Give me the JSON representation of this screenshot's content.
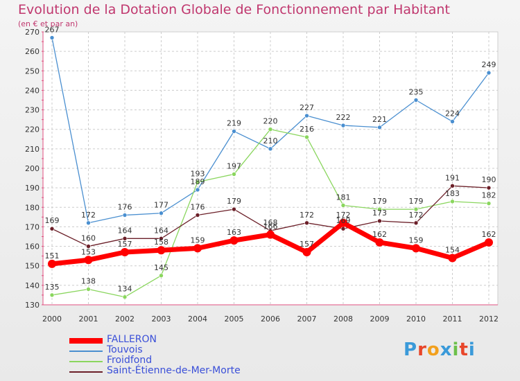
{
  "title": "Evolution de la Dotation Globale de Fonctionnement par Habitant",
  "subtitle": "(en € et par an)",
  "logo": {
    "text": "Proxiti",
    "letter_colors": [
      "#3a9ad9",
      "#e8462a",
      "#f2a01d",
      "#3a9ad9",
      "#6cc04a",
      "#e8462a",
      "#3a9ad9"
    ]
  },
  "chart_data": {
    "type": "line",
    "title": "Evolution de la Dotation Globale de Fonctionnement par Habitant",
    "subtitle": "(en € et par an)",
    "x": [
      "2000",
      "2001",
      "2002",
      "2003",
      "2004",
      "2005",
      "2006",
      "2007",
      "2008",
      "2009",
      "2010",
      "2011",
      "2012"
    ],
    "ylim": [
      130,
      270
    ],
    "yticks": [
      130,
      140,
      150,
      160,
      170,
      180,
      190,
      200,
      210,
      220,
      230,
      240,
      250,
      260,
      270
    ],
    "grid": true,
    "legend_position": "bottom-left",
    "series": [
      {
        "name": "FALLERON",
        "color": "#ff0000",
        "values": [
          151,
          153,
          157,
          158,
          159,
          163,
          166,
          157,
          172,
          162,
          159,
          154,
          162
        ]
      },
      {
        "name": "Touvois",
        "color": "#4a8fd0",
        "values": [
          267,
          172,
          176,
          177,
          189,
          219,
          210,
          227,
          222,
          221,
          235,
          224,
          249
        ]
      },
      {
        "name": "Froidfond",
        "color": "#8ad65e",
        "values": [
          135,
          138,
          134,
          145,
          193,
          197,
          220,
          216,
          181,
          179,
          179,
          183,
          182
        ]
      },
      {
        "name": "Saint-Étienne-de-Mer-Morte",
        "color": "#6b1f28",
        "values": [
          169,
          160,
          164,
          164,
          176,
          179,
          168,
          172,
          169,
          173,
          172,
          191,
          190
        ]
      }
    ],
    "data_labels": {
      "FALLERON": [
        "151",
        "153",
        "157",
        "158",
        "159",
        "163",
        "166",
        "157",
        "172",
        "162",
        "159",
        "154",
        "162"
      ],
      "Touvois": [
        "267",
        "172",
        "176",
        "177",
        "189",
        "219",
        "210",
        "227",
        "222",
        "221",
        "235",
        "224",
        "249"
      ],
      "Froidfond": [
        "135",
        "138",
        "134",
        "145",
        "193",
        "197",
        "220",
        "216",
        "181",
        "179",
        "179",
        "183",
        "182"
      ],
      "Saint-Étienne-de-Mer-Morte": [
        "169",
        "160",
        "164",
        "164",
        "176",
        "179",
        "168",
        "172",
        "169",
        "173",
        "172",
        "191",
        "190"
      ]
    }
  }
}
